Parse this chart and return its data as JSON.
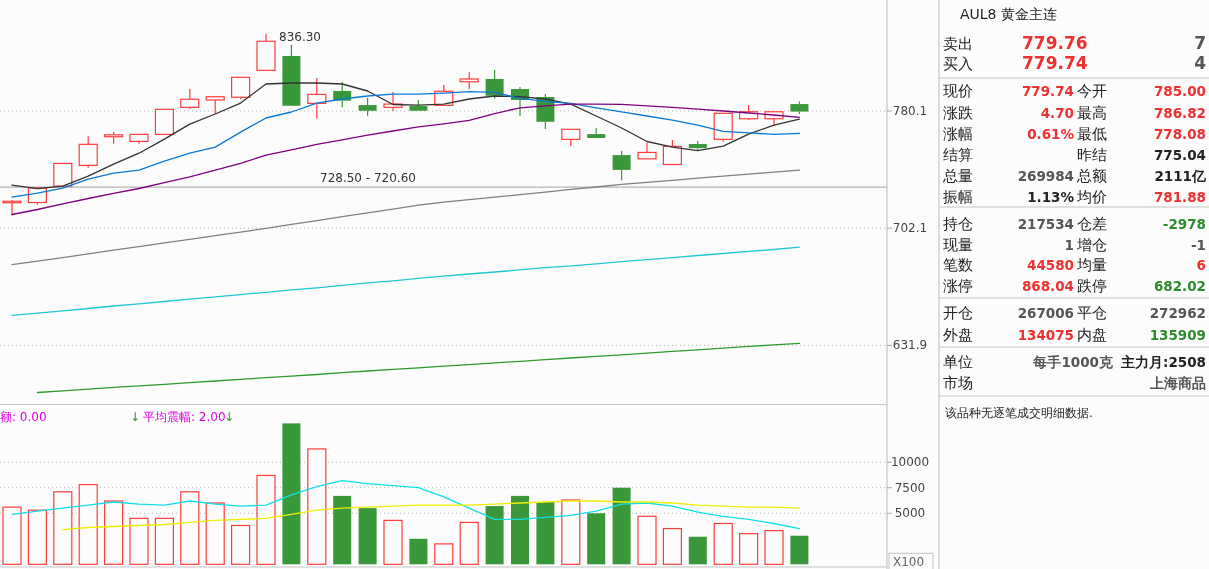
{
  "chart_data": [
    {
      "type": "candlestick",
      "categories": [
        null,
        null,
        null,
        null,
        null,
        null,
        null,
        null,
        null,
        null,
        null,
        null,
        null,
        null,
        null,
        null,
        null,
        null,
        null,
        null,
        null,
        null,
        null,
        null,
        null,
        null,
        null,
        null,
        null,
        null,
        null,
        null
      ],
      "ohlc": [
        [
          718.9,
          720.0,
          710.4,
          719.3
        ],
        [
          718.5,
          728.0,
          717.2,
          728.0
        ],
        [
          729.2,
          744.2,
          729.2,
          744.2
        ],
        [
          742.9,
          762.7,
          741.3,
          757.1
        ],
        [
          762.3,
          765.5,
          757.5,
          763.6
        ],
        [
          759.1,
          763.9,
          757.5,
          763.9
        ],
        [
          763.9,
          781.3,
          763.9,
          781.3
        ],
        [
          782.7,
          795.7,
          781.5,
          788.4
        ],
        [
          787.9,
          790.2,
          777.8,
          790.2
        ],
        [
          789.8,
          804.1,
          788.4,
          804.1
        ],
        [
          809.2,
          836.3,
          809.2,
          830.6
        ],
        [
          819.7,
          827.9,
          783.8,
          783.8
        ],
        [
          785.5,
          803.6,
          774.7,
          791.9
        ],
        [
          794.3,
          800.7,
          782.7,
          787.4
        ],
        [
          784.3,
          789.5,
          776.8,
          780.3
        ],
        [
          782.7,
          793.6,
          780.1,
          785.0
        ],
        [
          783.6,
          787.9,
          780.1,
          780.3
        ],
        [
          784.1,
          798.6,
          784.1,
          794.1
        ],
        [
          800.9,
          808.0,
          795.5,
          802.9
        ],
        [
          802.9,
          809.4,
          788.8,
          790.9
        ],
        [
          795.7,
          797.1,
          776.6,
          787.9
        ],
        [
          790.0,
          792.1,
          767.6,
          772.6
        ],
        [
          760.5,
          767.4,
          755.9,
          767.4
        ],
        [
          764.1,
          768.3,
          761.4,
          761.4
        ],
        [
          749.8,
          752.5,
          733.1,
          739.9
        ],
        [
          747.3,
          758.2,
          747.3,
          751.6
        ],
        [
          743.5,
          760.0,
          743.5,
          755.7
        ],
        [
          757.3,
          759.3,
          753.0,
          754.5
        ],
        [
          760.5,
          778.5,
          758.8,
          778.5
        ],
        [
          774.7,
          784.3,
          773.8,
          779.6
        ],
        [
          774.7,
          779.6,
          769.6,
          779.6
        ],
        [
          785.0,
          786.82,
          778.08,
          779.74
        ]
      ],
      "colors": [
        "#ff3c3c",
        "#ff3c3c",
        "#ff3c3c",
        "#ff3c3c",
        "#ff3c3c",
        "#ff3c3c",
        "#ff3c3c",
        "#ff3c3c",
        "#ff3c3c",
        "#ff3c3c",
        "#ff3c3c",
        "#3a973a",
        "#ff3c3c",
        "#3a973a",
        "#3a973a",
        "#ff3c3c",
        "#3a973a",
        "#ff3c3c",
        "#ff3c3c",
        "#3a973a",
        "#3a973a",
        "#3a973a",
        "#ff3c3c",
        "#3a973a",
        "#3a973a",
        "#ff3c3c",
        "#ff3c3c",
        "#3a973a",
        "#ff3c3c",
        "#ff3c3c",
        "#ff3c3c",
        "#3a973a"
      ],
      "series": [
        {
          "type": "line",
          "color": "#333333",
          "values": [
            729.8,
            727.5,
            729.2,
            735.8,
            743.7,
            751.1,
            760.7,
            771.0,
            778.0,
            785.7,
            799.3,
            800.0,
            800.0,
            799.3,
            794.3,
            784.7,
            784.3,
            785.0,
            788.6,
            790.7,
            790.3,
            788.6,
            785.0,
            776.6,
            768.3,
            759.0,
            755.2,
            752.8,
            755.9,
            764.1,
            770.3,
            774.5
          ]
        },
        {
          "type": "line",
          "color": "#0a78d7",
          "values": [
            722.0,
            724.6,
            727.9,
            733.8,
            737.7,
            739.7,
            745.8,
            751.1,
            755.2,
            765.5,
            775.2,
            779.4,
            785.7,
            788.6,
            790.7,
            792.1,
            792.1,
            792.8,
            793.8,
            793.3,
            789.1,
            786.9,
            785.5,
            782.4,
            779.6,
            776.6,
            773.8,
            770.3,
            766.0,
            765.0,
            763.9,
            764.6
          ]
        },
        {
          "type": "line",
          "color": "#800080",
          "values": [
            710.8,
            714.0,
            717.6,
            721.1,
            724.4,
            727.6,
            731.5,
            735.3,
            739.7,
            744.2,
            749.8,
            753.4,
            757.1,
            760.2,
            763.4,
            766.2,
            769.1,
            771.2,
            773.6,
            778.3,
            782.4,
            783.8,
            785.0,
            784.9,
            784.8,
            783.8,
            782.7,
            781.4,
            780.1,
            778.7,
            777.3,
            775.7
          ]
        },
        {
          "type": "line",
          "color": "#808080",
          "values": [
            679.5,
            681.6,
            683.8,
            686.1,
            688.4,
            690.6,
            692.9,
            695.1,
            697.4,
            699.6,
            702.0,
            704.5,
            706.9,
            709.4,
            711.9,
            714.2,
            716.8,
            718.7,
            720.4,
            722.0,
            723.6,
            725.3,
            727.0,
            728.6,
            730.3,
            731.7,
            733.0,
            734.4,
            735.7,
            737.1,
            738.4,
            739.7
          ]
        },
        {
          "type": "line",
          "color": "#20c8d0",
          "values": [
            649.2,
            650.5,
            651.8,
            653.2,
            654.7,
            655.9,
            657.3,
            658.7,
            660.1,
            661.4,
            662.8,
            664.2,
            665.5,
            667.0,
            668.4,
            669.7,
            671.1,
            672.5,
            673.8,
            675.0,
            676.3,
            677.6,
            678.8,
            680.0,
            681.3,
            682.5,
            683.8,
            685.1,
            686.3,
            687.6,
            688.8,
            690.2
          ]
        },
        {
          "type": "line",
          "color": "#2e9a2e",
          "values": [
            null,
            605.7,
            606.6,
            607.5,
            608.5,
            609.3,
            610.2,
            611.1,
            612.0,
            612.9,
            613.8,
            614.7,
            615.6,
            616.6,
            617.5,
            618.4,
            619.3,
            620.2,
            621.1,
            622.0,
            622.9,
            623.9,
            624.8,
            625.7,
            626.6,
            627.5,
            628.5,
            629.4,
            630.3,
            631.3,
            632.2,
            633.0
          ]
        }
      ],
      "log": true,
      "ylim": [
        600,
        862
      ],
      "yticks": [
        631.9,
        702.1,
        780.1
      ],
      "grid": "y",
      "tick_labels": "y",
      "ref_lines": [
        {
          "axis": "y",
          "value": 728.5,
          "label": "728.50 - 720.60",
          "color": "#b4b4b4"
        }
      ],
      "annotations": [
        "836.30"
      ]
    },
    {
      "type": "bar",
      "categories": [
        null,
        null,
        null,
        null,
        null,
        null,
        null,
        null,
        null,
        null,
        null,
        null,
        null,
        null,
        null,
        null,
        null,
        null,
        null,
        null,
        null,
        null,
        null,
        null,
        null,
        null,
        null,
        null,
        null,
        null,
        null,
        null
      ],
      "series": [
        {
          "type": "bar",
          "values": [
            5600,
            5300,
            7100,
            7800,
            6200,
            4500,
            4500,
            7100,
            6000,
            3800,
            8700,
            13800,
            11300,
            6700,
            5500,
            4300,
            2500,
            2000,
            4100,
            5700,
            6700,
            6100,
            6300,
            5000,
            7500,
            4700,
            3500,
            2700,
            4000,
            3000,
            3300,
            2800
          ],
          "colors": [
            "#ff3c3c",
            "#ff3c3c",
            "#ff3c3c",
            "#ff3c3c",
            "#ff3c3c",
            "#ff3c3c",
            "#ff3c3c",
            "#ff3c3c",
            "#ff3c3c",
            "#ff3c3c",
            "#ff3c3c",
            "#3a973a",
            "#ff3c3c",
            "#3a973a",
            "#3a973a",
            "#ff3c3c",
            "#3a973a",
            "#ff3c3c",
            "#ff3c3c",
            "#3a973a",
            "#3a973a",
            "#3a973a",
            "#ff3c3c",
            "#3a973a",
            "#3a973a",
            "#ff3c3c",
            "#ff3c3c",
            "#3a973a",
            "#ff3c3c",
            "#ff3c3c",
            "#ff3c3c",
            "#3a973a"
          ]
        },
        {
          "type": "line",
          "color": "#11e0e8",
          "values": [
            4900,
            5200,
            5500,
            5800,
            6100,
            5900,
            5800,
            6200,
            5900,
            5700,
            5800,
            6800,
            7600,
            8200,
            7900,
            7700,
            7500,
            6600,
            5500,
            4400,
            4400,
            4600,
            4800,
            5200,
            5900,
            6000,
            5700,
            5100,
            4700,
            4400,
            4000,
            3500
          ]
        },
        {
          "type": "line",
          "color": "#eeee00",
          "values": [
            null,
            null,
            3400,
            3600,
            3700,
            3800,
            3900,
            4100,
            4300,
            4400,
            4500,
            4900,
            5300,
            5500,
            5600,
            5700,
            5800,
            5800,
            5800,
            5900,
            6000,
            6100,
            6200,
            6200,
            6100,
            6100,
            6000,
            5800,
            5700,
            5600,
            5600,
            5500
          ]
        }
      ],
      "ylim": [
        0,
        15600
      ],
      "yticks": [
        5000,
        7500,
        10000
      ],
      "ylabel": "X100",
      "grid": "y",
      "tick_labels": "y",
      "annotations": [
        "额: 0.00",
        "↓",
        "平均震幅: 2.00",
        "↓"
      ]
    },
    {
      "type": "other",
      "title": "AUL8 黄金主连",
      "annotations": [
        "卖出",
        "779.76",
        "7",
        "买入",
        "779.74",
        "4",
        "现价",
        "779.74",
        "今开",
        "785.00",
        "涨跌",
        "4.70",
        "最高",
        "786.82",
        "涨幅",
        "0.61%",
        "最低",
        "778.08",
        "结算",
        "昨结",
        "775.04",
        "总量",
        "269984",
        "总额",
        "2111亿",
        "振幅",
        "1.13%",
        "均价",
        "781.88",
        "持仓",
        "217534",
        "仓差",
        "-2978",
        "现量",
        "1",
        "增仓",
        "-1",
        "笔数",
        "44580",
        "均量",
        "6",
        "涨停",
        "868.04",
        "跌停",
        "682.02",
        "开仓",
        "267006",
        "平仓",
        "272962",
        "外盘",
        "134075",
        "内盘",
        "135909",
        "单位",
        "每手1000克",
        "主力月:2508",
        "市场",
        "上海商品",
        "该品种无逐笔成交明细数据."
      ]
    }
  ]
}
